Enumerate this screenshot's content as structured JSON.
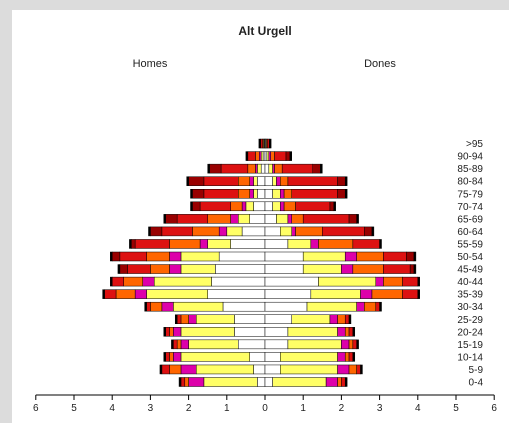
{
  "chart_data": {
    "type": "population-pyramid",
    "title": "Alt Urgell",
    "left_label": "Homes",
    "right_label": "Dones",
    "xlim": [
      -6,
      6
    ],
    "x_ticks": [
      6,
      5,
      4,
      3,
      2,
      1,
      0,
      1,
      2,
      3,
      4,
      5,
      6
    ],
    "age_groups": [
      "0-4",
      "5-9",
      "10-14",
      "15-19",
      "20-24",
      "25-29",
      "30-34",
      "35-39",
      "40-44",
      "45-49",
      "50-54",
      "55-59",
      "60-64",
      "65-69",
      "70-74",
      "75-79",
      "80-84",
      "85-89",
      "90-94",
      ">95"
    ],
    "segment_colors": [
      "#ffffff",
      "#ffff66",
      "#dd00aa",
      "#ff6600",
      "#dd1111",
      "#990000",
      "#000000"
    ],
    "homes": [
      [
        0.2,
        1.4,
        0.4,
        0.1,
        0.1,
        0.0,
        0.05
      ],
      [
        0.3,
        1.5,
        0.4,
        0.3,
        0.2,
        0.0,
        0.05
      ],
      [
        0.4,
        1.8,
        0.2,
        0.1,
        0.1,
        0.0,
        0.05
      ],
      [
        0.7,
        1.3,
        0.2,
        0.1,
        0.1,
        0.0,
        0.05
      ],
      [
        0.8,
        1.4,
        0.2,
        0.1,
        0.1,
        0.0,
        0.05
      ],
      [
        0.8,
        1.0,
        0.2,
        0.2,
        0.1,
        0.0,
        0.05
      ],
      [
        1.1,
        1.3,
        0.3,
        0.3,
        0.1,
        0.0,
        0.05
      ],
      [
        1.5,
        1.6,
        0.3,
        0.5,
        0.3,
        0.0,
        0.05
      ],
      [
        1.4,
        1.5,
        0.3,
        0.5,
        0.3,
        0.0,
        0.05
      ],
      [
        1.3,
        0.9,
        0.3,
        0.5,
        0.6,
        0.2,
        0.05
      ],
      [
        1.2,
        1.0,
        0.3,
        0.6,
        0.7,
        0.2,
        0.05
      ],
      [
        0.9,
        0.6,
        0.2,
        0.8,
        0.9,
        0.1,
        0.05
      ],
      [
        0.6,
        0.4,
        0.2,
        0.7,
        0.8,
        0.3,
        0.05
      ],
      [
        0.4,
        0.3,
        0.2,
        0.6,
        0.8,
        0.3,
        0.05
      ],
      [
        0.3,
        0.2,
        0.1,
        0.3,
        0.8,
        0.2,
        0.05
      ],
      [
        0.2,
        0.1,
        0.1,
        0.3,
        0.9,
        0.3,
        0.05
      ],
      [
        0.2,
        0.1,
        0.1,
        0.3,
        0.9,
        0.4,
        0.05
      ],
      [
        0.1,
        0.1,
        0.05,
        0.2,
        0.7,
        0.3,
        0.05
      ],
      [
        0.05,
        0.05,
        0.05,
        0.1,
        0.2,
        0.0,
        0.05
      ],
      [
        0.02,
        0.02,
        0.0,
        0.02,
        0.05,
        0.0,
        0.05
      ]
    ],
    "dones": [
      [
        0.2,
        1.4,
        0.3,
        0.1,
        0.1,
        0.0,
        0.05
      ],
      [
        0.4,
        1.5,
        0.3,
        0.2,
        0.1,
        0.0,
        0.05
      ],
      [
        0.4,
        1.5,
        0.2,
        0.1,
        0.1,
        0.0,
        0.05
      ],
      [
        0.6,
        1.4,
        0.2,
        0.1,
        0.1,
        0.0,
        0.05
      ],
      [
        0.6,
        1.3,
        0.2,
        0.1,
        0.1,
        0.0,
        0.05
      ],
      [
        0.7,
        1.0,
        0.2,
        0.2,
        0.1,
        0.0,
        0.05
      ],
      [
        1.1,
        1.3,
        0.2,
        0.3,
        0.1,
        0.0,
        0.05
      ],
      [
        1.2,
        1.3,
        0.3,
        0.8,
        0.4,
        0.0,
        0.05
      ],
      [
        1.4,
        1.5,
        0.2,
        0.5,
        0.4,
        0.0,
        0.05
      ],
      [
        1.0,
        1.0,
        0.3,
        0.8,
        0.7,
        0.1,
        0.05
      ],
      [
        1.0,
        1.1,
        0.3,
        0.7,
        0.6,
        0.2,
        0.05
      ],
      [
        0.6,
        0.6,
        0.2,
        0.9,
        0.7,
        0.0,
        0.05
      ],
      [
        0.4,
        0.3,
        0.1,
        0.7,
        1.1,
        0.2,
        0.05
      ],
      [
        0.3,
        0.3,
        0.1,
        0.3,
        1.2,
        0.2,
        0.05
      ],
      [
        0.2,
        0.2,
        0.1,
        0.3,
        0.9,
        0.1,
        0.05
      ],
      [
        0.2,
        0.2,
        0.1,
        0.2,
        1.2,
        0.2,
        0.05
      ],
      [
        0.2,
        0.1,
        0.1,
        0.2,
        1.3,
        0.2,
        0.05
      ],
      [
        0.1,
        0.1,
        0.05,
        0.2,
        0.8,
        0.2,
        0.05
      ],
      [
        0.05,
        0.05,
        0.05,
        0.1,
        0.3,
        0.1,
        0.05
      ],
      [
        0.02,
        0.02,
        0.0,
        0.02,
        0.05,
        0.0,
        0.05
      ]
    ]
  }
}
